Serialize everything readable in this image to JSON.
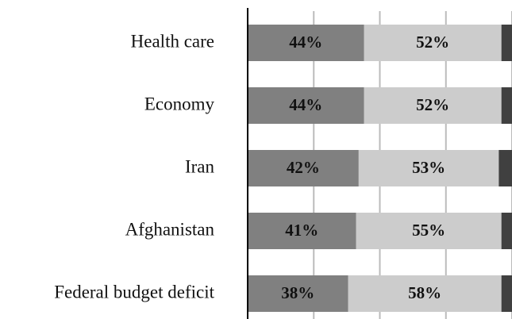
{
  "chart_data": {
    "type": "stacked_barh",
    "categories": [
      "Health care",
      "Economy",
      "Iran",
      "Afghanistan",
      "Federal budget deficit"
    ],
    "series": [
      {
        "color": "#808080",
        "values": [
          44,
          44,
          42,
          41,
          38
        ],
        "value_labels": [
          "44%",
          "44%",
          "42%",
          "41%",
          "38%"
        ]
      },
      {
        "color": "#cccccc",
        "values": [
          52,
          52,
          53,
          55,
          58
        ],
        "value_labels": [
          "52%",
          "52%",
          "53%",
          "55%",
          "58%"
        ]
      },
      {
        "color": "#404040",
        "values": [
          4,
          4,
          5,
          4,
          4
        ]
      }
    ],
    "xlim": [
      0,
      100
    ],
    "xticks": [
      0,
      25,
      50,
      75,
      100
    ],
    "grid": true
  }
}
